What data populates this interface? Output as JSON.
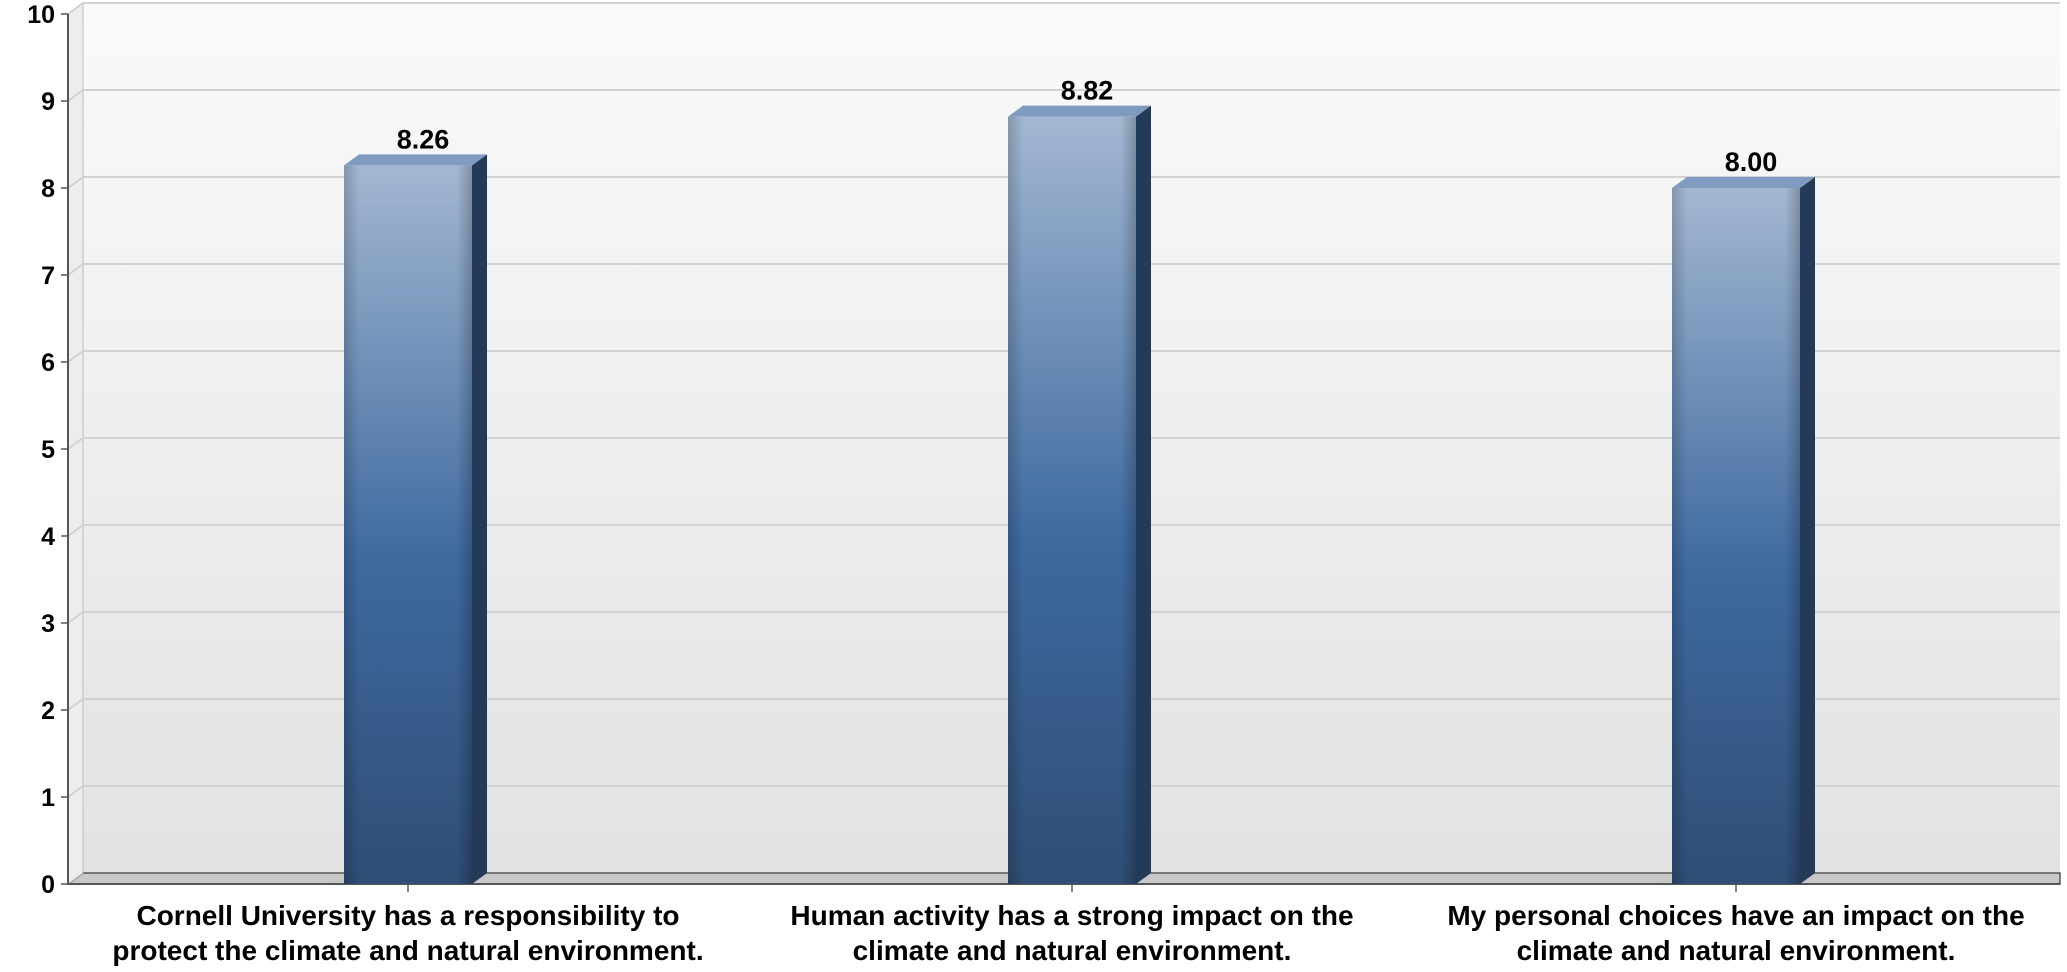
{
  "chart_data": {
    "type": "bar",
    "categories": [
      "Cornell University has a responsibility to protect the climate and natural environment.",
      "Human activity has a strong impact on the climate and natural environment.",
      "My personal choices have an impact on the climate and natural environment."
    ],
    "category_lines": [
      [
        "Cornell University has a responsibility to",
        "protect the climate and natural environment."
      ],
      [
        "Human activity has a strong impact on the",
        "climate and natural environment."
      ],
      [
        "My personal choices have an impact on the",
        "climate and natural environment."
      ]
    ],
    "values": [
      8.26,
      8.82,
      8.0
    ],
    "data_labels": [
      "8.26",
      "8.82",
      "8.00"
    ],
    "yticks": [
      "0",
      "1",
      "2",
      "3",
      "4",
      "5",
      "6",
      "7",
      "8",
      "9",
      "10"
    ],
    "ylim": [
      0,
      10
    ],
    "grid": true,
    "style": "3d-bar",
    "colors": {
      "bar_top": "#a3b7d1",
      "bar_mid": "#3e6aa0",
      "bar_bottom": "#2f4d75",
      "bar_cap": "#7f9bc0",
      "bar_side": "#243a59",
      "gridline": "#d2d2d2",
      "plot_bg_top": "#fafafa",
      "plot_bg_bottom": "#e2e2e2",
      "axis": "#555555"
    }
  }
}
